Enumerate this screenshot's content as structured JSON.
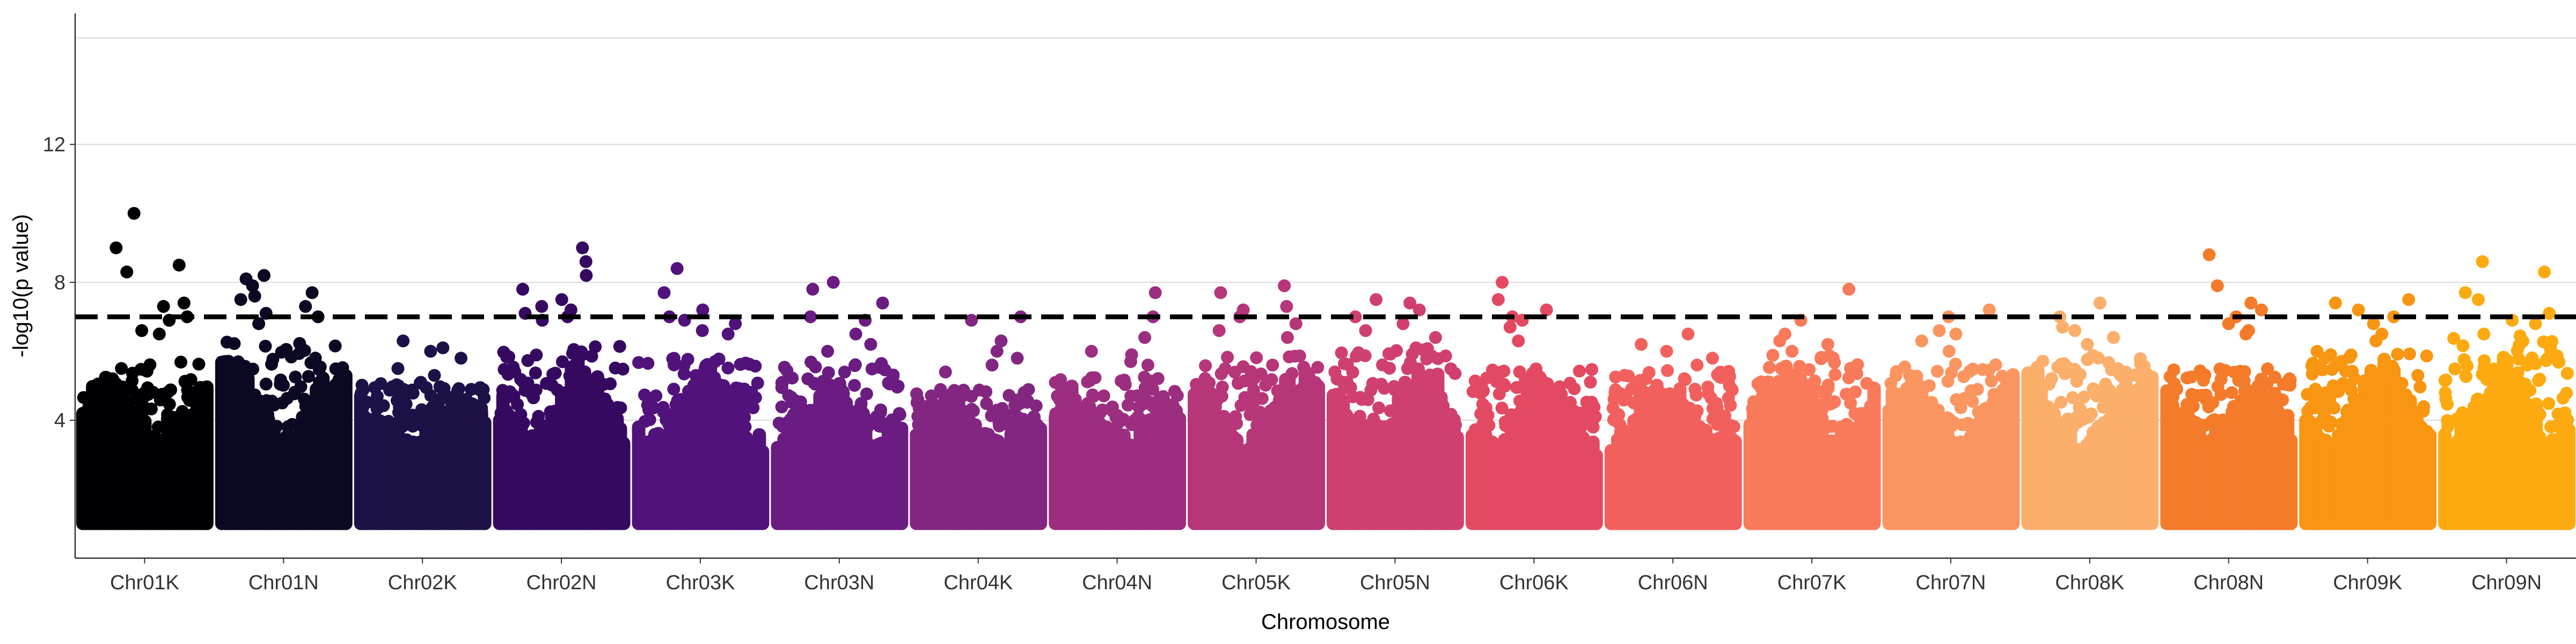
{
  "chart_data": {
    "type": "scatter",
    "subtype": "manhattan",
    "title": "",
    "xlabel": "Chromosome",
    "ylabel": "-log10(p value)",
    "ylim": [
      0,
      15.8
    ],
    "y_ticks": [
      4,
      8,
      12
    ],
    "grid": {
      "horizontal": true,
      "vertical": false
    },
    "significance_threshold": 7.0,
    "threshold_style": "dashed",
    "point_floor": 1.0,
    "chromosomes": [
      {
        "name": "Chr01K",
        "color": "#000004",
        "peak": 10.0,
        "typical_max": 5.4,
        "top_points": [
          10.0,
          9.0,
          8.5,
          8.3,
          7.4,
          7.3,
          7.0,
          6.9,
          6.6,
          6.5
        ]
      },
      {
        "name": "Chr01N",
        "color": "#0a0822",
        "peak": 8.2,
        "typical_max": 6.0,
        "top_points": [
          8.2,
          8.1,
          7.9,
          7.7,
          7.6,
          7.5,
          7.3,
          7.1,
          7.0,
          6.8
        ]
      },
      {
        "name": "Chr02K",
        "color": "#1d1147",
        "peak": 6.3,
        "typical_max": 4.8,
        "top_points": [
          6.3,
          6.1,
          6.0,
          5.8,
          5.5,
          5.3,
          5.1,
          5.0
        ]
      },
      {
        "name": "Chr02N",
        "color": "#360961",
        "peak": 9.0,
        "typical_max": 6.0,
        "top_points": [
          9.0,
          8.6,
          8.2,
          7.8,
          7.5,
          7.3,
          7.2,
          7.1,
          7.0,
          6.9
        ]
      },
      {
        "name": "Chr03K",
        "color": "#51127c",
        "peak": 8.4,
        "typical_max": 5.6,
        "top_points": [
          8.4,
          7.7,
          7.2,
          7.0,
          6.9,
          6.8,
          6.6,
          6.5
        ]
      },
      {
        "name": "Chr03N",
        "color": "#6a1c81",
        "peak": 8.0,
        "typical_max": 5.4,
        "top_points": [
          8.0,
          7.8,
          7.4,
          7.0,
          6.9,
          6.5,
          6.2,
          6.0
        ]
      },
      {
        "name": "Chr04K",
        "color": "#832681",
        "peak": 7.0,
        "typical_max": 4.6,
        "top_points": [
          7.0,
          6.9,
          6.3,
          6.0,
          5.8,
          5.6,
          5.4
        ]
      },
      {
        "name": "Chr04N",
        "color": "#9c2e7f",
        "peak": 7.7,
        "typical_max": 5.0,
        "top_points": [
          7.7,
          7.0,
          6.4,
          6.0,
          5.9,
          5.7,
          5.6
        ]
      },
      {
        "name": "Chr05K",
        "color": "#b63679",
        "peak": 7.9,
        "typical_max": 5.6,
        "top_points": [
          7.9,
          7.7,
          7.3,
          7.2,
          7.0,
          6.8,
          6.6,
          6.4
        ]
      },
      {
        "name": "Chr05N",
        "color": "#cf4070",
        "peak": 7.5,
        "typical_max": 5.8,
        "top_points": [
          7.5,
          7.4,
          7.2,
          7.0,
          6.8,
          6.6,
          6.4
        ]
      },
      {
        "name": "Chr06K",
        "color": "#e34a62",
        "peak": 8.0,
        "typical_max": 5.2,
        "top_points": [
          8.0,
          7.5,
          7.2,
          7.0,
          6.9,
          6.7,
          6.3
        ]
      },
      {
        "name": "Chr06N",
        "color": "#f1605d",
        "peak": 6.5,
        "typical_max": 5.2,
        "top_points": [
          6.5,
          6.2,
          6.0,
          5.8,
          5.6
        ]
      },
      {
        "name": "Chr07K",
        "color": "#f87a5a",
        "peak": 7.8,
        "typical_max": 5.6,
        "top_points": [
          7.8,
          6.9,
          6.5,
          6.3,
          6.2,
          6.0
        ]
      },
      {
        "name": "Chr07N",
        "color": "#fb9560",
        "peak": 7.2,
        "typical_max": 5.4,
        "top_points": [
          7.2,
          7.0,
          6.6,
          6.5,
          6.3,
          6.0
        ]
      },
      {
        "name": "Chr08K",
        "color": "#fcae6b",
        "peak": 7.4,
        "typical_max": 5.6,
        "top_points": [
          7.4,
          7.0,
          6.7,
          6.6,
          6.4,
          6.2
        ]
      },
      {
        "name": "Chr08N",
        "color": "#f37b2a",
        "peak": 8.8,
        "typical_max": 5.2,
        "top_points": [
          8.8,
          7.9,
          7.4,
          7.2,
          7.0,
          6.8,
          6.6,
          6.5
        ]
      },
      {
        "name": "Chr09K",
        "color": "#f89511",
        "peak": 7.5,
        "typical_max": 5.8,
        "top_points": [
          7.5,
          7.4,
          7.2,
          7.0,
          6.8,
          6.5,
          6.3
        ]
      },
      {
        "name": "Chr09N",
        "color": "#fcaa10",
        "peak": 8.6,
        "typical_max": 6.2,
        "top_points": [
          8.6,
          8.3,
          7.7,
          7.5,
          7.1,
          6.9,
          6.8,
          6.5
        ]
      }
    ]
  }
}
